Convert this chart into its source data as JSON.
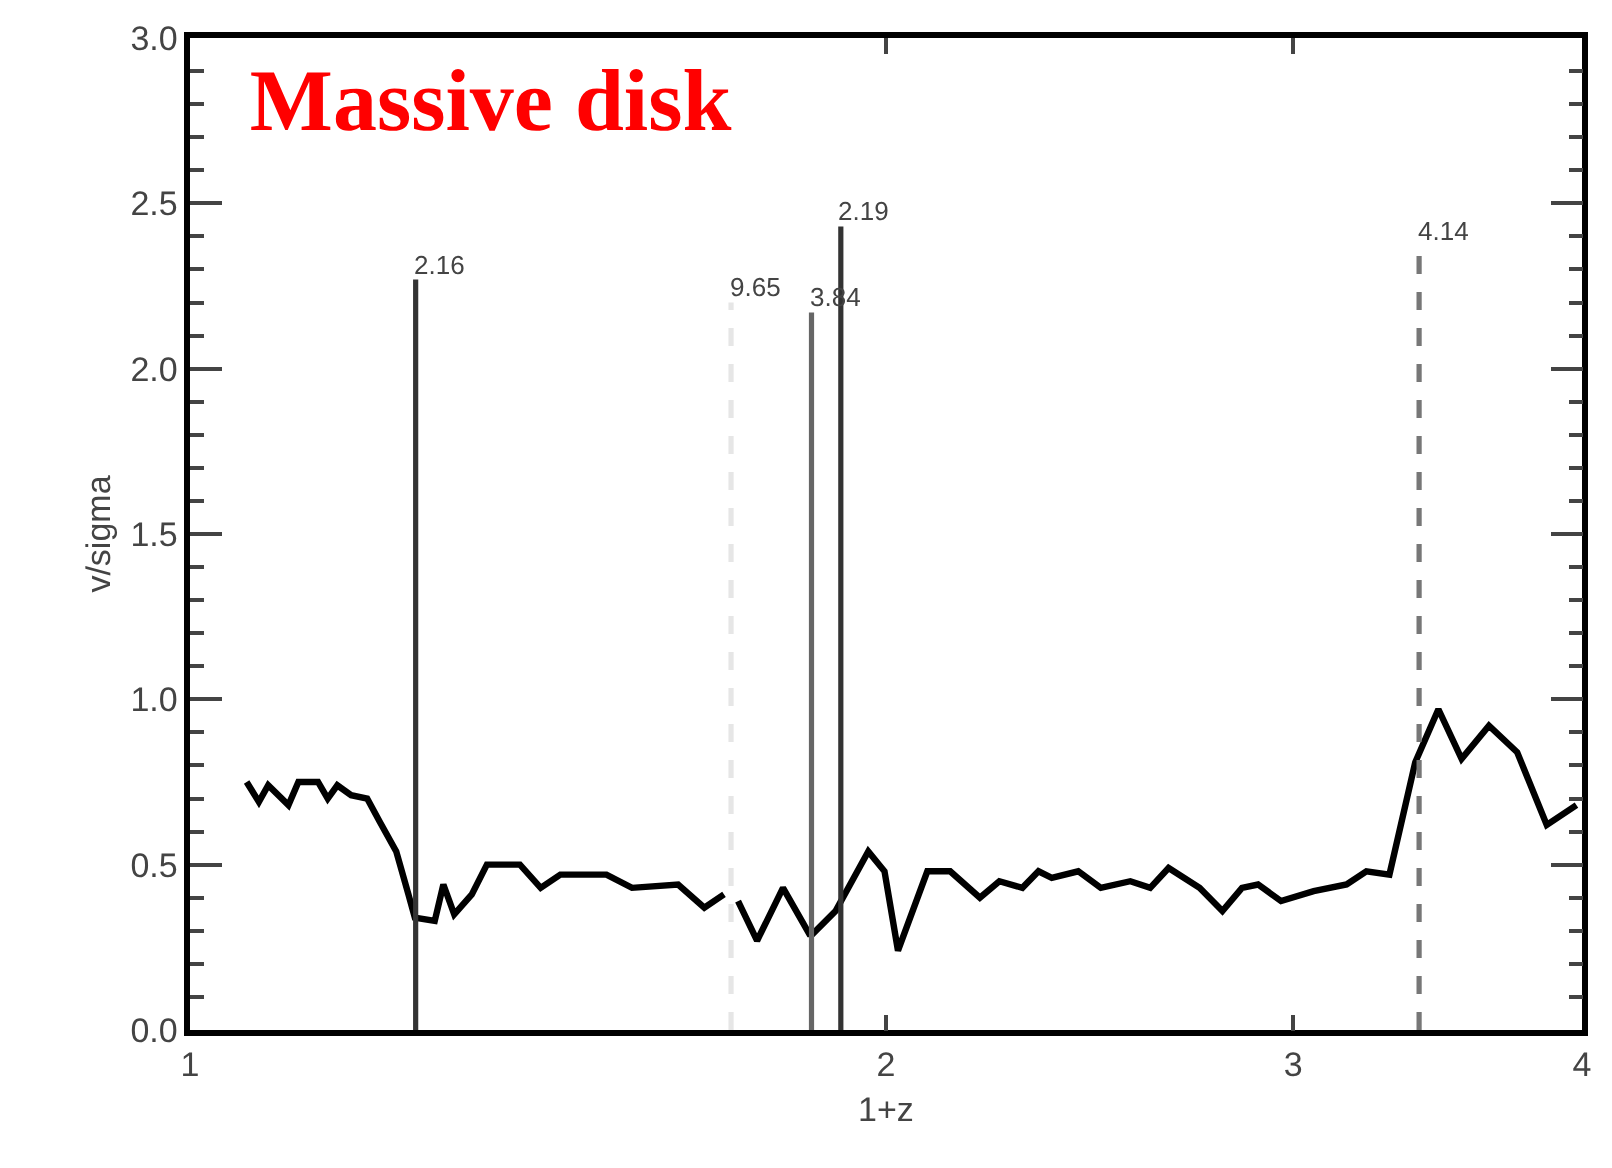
{
  "chart_data": {
    "type": "line",
    "title": "Massive disk",
    "xlabel": "1+z",
    "ylabel": "v/sigma",
    "log": "x",
    "xlim": [
      1,
      4
    ],
    "xticks": [
      1,
      2,
      3,
      4
    ],
    "ylim": [
      0,
      3
    ],
    "yticks": [
      {
        "value": 0,
        "label": "0.0"
      },
      0.5,
      {
        "value": 1,
        "label": "1.0"
      },
      1.5,
      {
        "value": 2,
        "label": "2.0"
      },
      2.5,
      {
        "value": 3,
        "label": "3.0"
      }
    ],
    "marker": "none",
    "series": [
      {
        "color": "#000000",
        "line_style": "solid",
        "x": [
          1.058,
          1.071,
          1.081,
          1.103,
          1.114,
          1.136,
          1.147,
          1.158,
          1.174,
          1.193,
          1.208,
          1.228,
          1.243,
          1.251,
          1.276,
          1.287,
          1.301,
          1.324,
          1.344,
          1.389,
          1.418,
          1.446,
          1.514,
          1.553,
          1.626,
          1.669,
          1.702,
          1.714,
          1.726,
          1.759,
          1.805,
          1.853,
          1.859,
          1.902,
          1.965,
          1.997,
          2.024,
          2.084,
          2.132,
          2.196,
          2.239,
          2.291,
          2.328,
          2.359,
          2.422,
          2.477,
          2.551,
          2.602,
          2.65,
          2.733,
          2.796,
          2.851,
          2.897,
          2.964,
          3.062,
          3.164,
          3.227,
          3.302,
          3.388,
          3.467,
          3.548,
          3.646,
          3.75,
          3.862,
          3.978
        ],
        "values": [
          0.75,
          0.69,
          0.74,
          0.68,
          0.75,
          0.75,
          0.7,
          0.74,
          0.71,
          0.7,
          0.63,
          0.54,
          0.41,
          0.34,
          0.33,
          0.44,
          0.35,
          0.41,
          0.5,
          0.5,
          0.43,
          0.47,
          0.47,
          0.43,
          0.44,
          0.37,
          0.41,
          null,
          0.39,
          0.27,
          0.43,
          0.29,
          0.29,
          0.36,
          0.54,
          0.48,
          0.24,
          0.48,
          0.48,
          0.4,
          0.45,
          0.43,
          0.48,
          0.46,
          0.48,
          0.43,
          0.45,
          0.43,
          0.49,
          0.43,
          0.36,
          0.43,
          0.44,
          0.39,
          0.42,
          0.44,
          0.48,
          0.47,
          0.81,
          0.97,
          0.82,
          0.92,
          0.84,
          0.62,
          0.68
        ]
      },
      {
        "color": "#333333",
        "line_style": "solid",
        "x": [
          1.252,
          1.252
        ],
        "values": [
          0,
          2.27
        ]
      },
      {
        "color": "#e6e6e6",
        "line_style": "dashed",
        "x": [
          1.714,
          1.714
        ],
        "values": [
          0,
          2.2
        ]
      },
      {
        "color": "#666666",
        "line_style": "solid",
        "x": [
          1.857,
          1.857
        ],
        "values": [
          0,
          2.17
        ]
      },
      {
        "color": "#333333",
        "line_style": "solid",
        "x": [
          1.912,
          1.912
        ],
        "values": [
          0,
          2.43
        ]
      },
      {
        "color": "#777777",
        "line_style": "dashed",
        "x": [
          3.401,
          3.401
        ],
        "values": [
          0,
          2.37
        ]
      }
    ],
    "annotations": [
      {
        "text": "2.16",
        "x": 1.252,
        "y": 2.27
      },
      {
        "text": "9.65",
        "x": 1.714,
        "y": 2.2
      },
      {
        "text": "3.84",
        "x": 1.857,
        "y": 2.17
      },
      {
        "text": "2.19",
        "x": 1.912,
        "y": 2.43
      },
      {
        "text": "4.14",
        "x": 3.401,
        "y": 2.37
      }
    ]
  }
}
